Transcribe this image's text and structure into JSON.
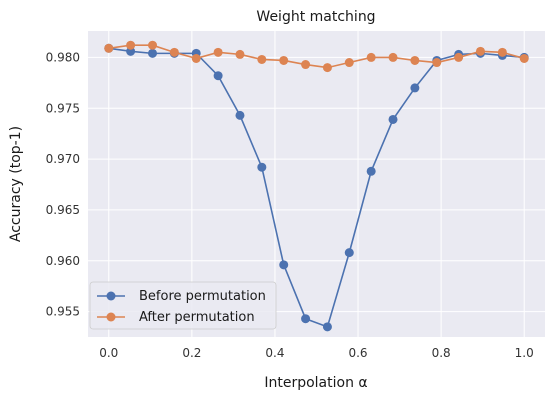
{
  "chart_data": {
    "type": "line",
    "title": "Weight matching",
    "xlabel": "Interpolation α",
    "ylabel": "Accuracy (top-1)",
    "xlim": [
      -0.05,
      1.05
    ],
    "ylim": [
      0.9525,
      0.9826
    ],
    "xticks": [
      0.0,
      0.2,
      0.4,
      0.6,
      0.8,
      1.0
    ],
    "xtick_labels": [
      "0.0",
      "0.2",
      "0.4",
      "0.6",
      "0.8",
      "1.0"
    ],
    "yticks": [
      0.955,
      0.96,
      0.965,
      0.97,
      0.975,
      0.98
    ],
    "ytick_labels": [
      "0.955",
      "0.960",
      "0.965",
      "0.970",
      "0.975",
      "0.980"
    ],
    "grid": true,
    "legend_position": "lower-left",
    "x": [
      0.0,
      0.0526,
      0.1053,
      0.1579,
      0.2105,
      0.2632,
      0.3158,
      0.3684,
      0.4211,
      0.4737,
      0.5263,
      0.5789,
      0.6316,
      0.6842,
      0.7368,
      0.7895,
      0.8421,
      0.8947,
      0.9474,
      1.0
    ],
    "series": [
      {
        "name": "Before permutation",
        "color": "#4c72b0",
        "values": [
          0.9809,
          0.9806,
          0.9804,
          0.9804,
          0.9804,
          0.9782,
          0.9743,
          0.9692,
          0.9596,
          0.9543,
          0.9535,
          0.9608,
          0.9688,
          0.9739,
          0.977,
          0.9797,
          0.9803,
          0.9804,
          0.9802,
          0.98
        ]
      },
      {
        "name": "After permutation",
        "color": "#dd8452",
        "values": [
          0.9809,
          0.9812,
          0.9812,
          0.9805,
          0.9799,
          0.9805,
          0.9803,
          0.9798,
          0.9797,
          0.9793,
          0.979,
          0.9795,
          0.98,
          0.98,
          0.9797,
          0.9795,
          0.98,
          0.9806,
          0.9805,
          0.9799
        ]
      }
    ]
  }
}
